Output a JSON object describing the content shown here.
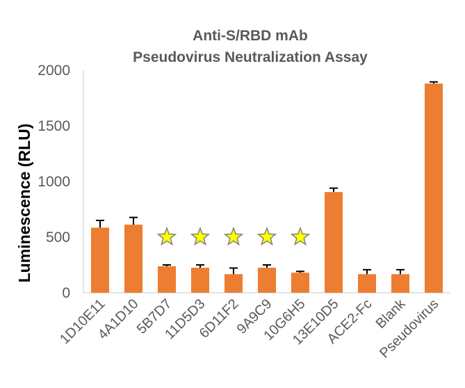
{
  "chart_data": {
    "type": "bar",
    "title_lines": [
      "Anti-S/RBD mAb",
      "Pseudovirus Neutralization Assay"
    ],
    "xlabel": "",
    "ylabel": "Luminescence (RLU)",
    "ylim": [
      0,
      2000
    ],
    "yticks": [
      0,
      500,
      1000,
      1500,
      2000
    ],
    "grid": false,
    "categories": [
      "1D10E11",
      "4A1D10",
      "5B7D7",
      "11D5D3",
      "6D11F2",
      "9A9C9",
      "10G6H5",
      "13E10D5",
      "ACE2-Fc",
      "Blank",
      "Pseudovirus"
    ],
    "values": [
      585,
      612,
      238,
      225,
      167,
      225,
      180,
      905,
      167,
      167,
      1880
    ],
    "errors": [
      65,
      65,
      12,
      25,
      55,
      25,
      12,
      35,
      40,
      40,
      15
    ],
    "significant": [
      false,
      false,
      true,
      true,
      true,
      true,
      true,
      false,
      false,
      false,
      false
    ],
    "bar_color": "#ED7D31",
    "star_fill": "#FFFF00",
    "star_stroke": "#808080"
  }
}
